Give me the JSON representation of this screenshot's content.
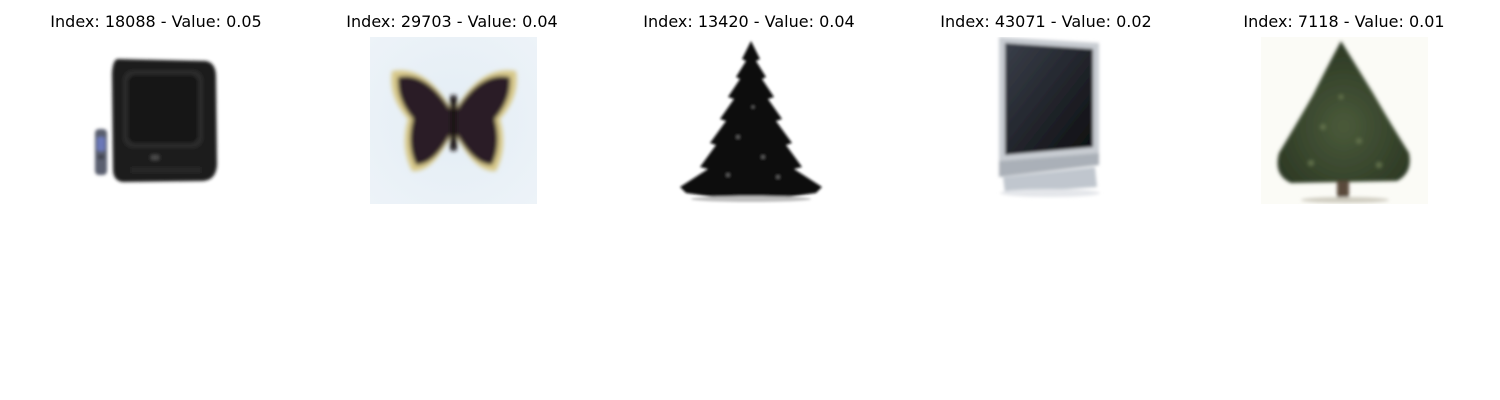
{
  "panels": [
    {
      "title": "Index: 18088 - Value: 0.05",
      "subject": "crt-television-icon"
    },
    {
      "title": "Index: 29703 - Value: 0.04",
      "subject": "butterfly-icon"
    },
    {
      "title": "Index: 13420 - Value: 0.04",
      "subject": "pine-tree-icon"
    },
    {
      "title": "Index: 43071 - Value: 0.02",
      "subject": "flat-screen-monitor-icon"
    },
    {
      "title": "Index: 7118 - Value: 0.01",
      "subject": "christmas-tree-icon"
    }
  ]
}
